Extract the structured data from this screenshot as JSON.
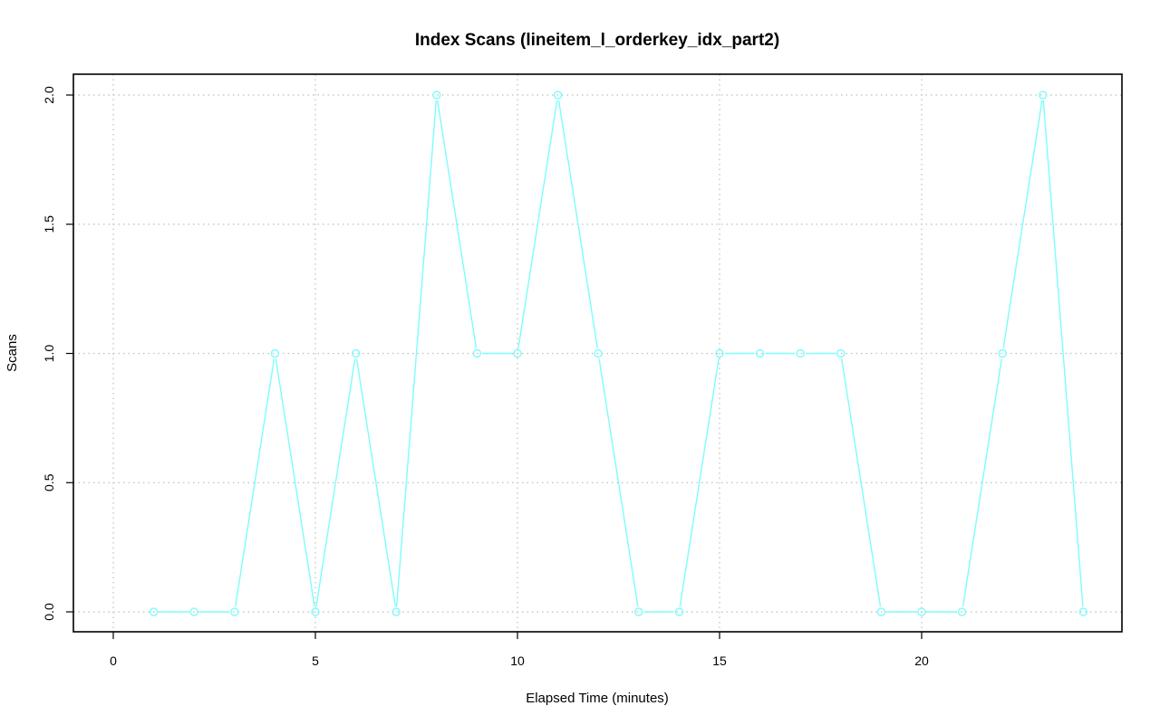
{
  "chart_data": {
    "type": "line",
    "title": "Index Scans (lineitem_l_orderkey_idx_part2)",
    "xlabel": "Elapsed Time (minutes)",
    "ylabel": "Scans",
    "xlim": [
      0,
      24.5
    ],
    "ylim": [
      0,
      2
    ],
    "x_ticks": [
      0,
      5,
      10,
      15,
      20
    ],
    "y_ticks": [
      0.0,
      0.5,
      1.0,
      1.5,
      2.0
    ],
    "x_tick_labels": [
      "0",
      "5",
      "10",
      "15",
      "20"
    ],
    "y_tick_labels": [
      "0.0",
      "0.5",
      "1.0",
      "1.5",
      "2.0"
    ],
    "grid": true,
    "series": [
      {
        "color": "#7ffcfc",
        "x": [
          1,
          2,
          3,
          4,
          5,
          6,
          7,
          8,
          9,
          10,
          11,
          12,
          13,
          14,
          15,
          16,
          17,
          18,
          19,
          20,
          21,
          22,
          23,
          24
        ],
        "values": [
          0,
          0,
          0,
          1,
          0,
          1,
          0,
          2,
          1,
          1,
          2,
          1,
          0,
          0,
          1,
          1,
          1,
          1,
          0,
          0,
          0,
          1,
          2,
          0
        ]
      }
    ]
  }
}
